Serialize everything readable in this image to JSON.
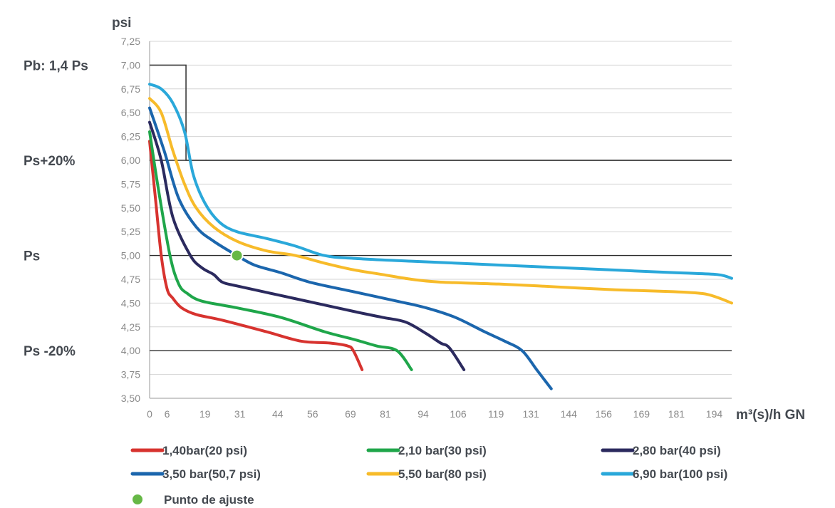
{
  "chart_data": {
    "type": "line",
    "ylabel": "psi",
    "xlabel": "m³(s)/h GN",
    "ylim": [
      3.5,
      7.25
    ],
    "xlim": [
      0,
      200
    ],
    "y_ticks": [
      "3,50",
      "3,75",
      "4,00",
      "4,25",
      "4,50",
      "4,75",
      "5,00",
      "5,25",
      "5,50",
      "5,75",
      "6,00",
      "6,25",
      "6,50",
      "6,75",
      "7,00",
      "7,25"
    ],
    "x_ticks": [
      "0",
      "6",
      "19",
      "31",
      "44",
      "56",
      "69",
      "81",
      "94",
      "106",
      "119",
      "131",
      "144",
      "156",
      "169",
      "181",
      "194"
    ],
    "x_tick_values": [
      0,
      6,
      19,
      31,
      44,
      56,
      69,
      81,
      94,
      106,
      119,
      131,
      144,
      156,
      169,
      181,
      194
    ],
    "grid": true,
    "legend_position": "bottom",
    "reference_lines": [
      {
        "label": "Ps+20%",
        "y": 6.0
      },
      {
        "label": "Ps",
        "y": 5.0
      },
      {
        "label": "Ps -20%",
        "y": 4.0
      }
    ],
    "limit_line": {
      "label": "Pb: 1,4 Ps",
      "color": "#3b3b3b",
      "points": [
        [
          0,
          7.0
        ],
        [
          12.5,
          7.0
        ],
        [
          12.5,
          6.0
        ],
        [
          200,
          6.0
        ]
      ]
    },
    "series": [
      {
        "name": "1,40bar(20 psi)",
        "color": "#d7332f",
        "points": [
          [
            0,
            6.2
          ],
          [
            2,
            5.6
          ],
          [
            4,
            5.0
          ],
          [
            6,
            4.65
          ],
          [
            8,
            4.55
          ],
          [
            11,
            4.45
          ],
          [
            16,
            4.38
          ],
          [
            25,
            4.32
          ],
          [
            40,
            4.2
          ],
          [
            52,
            4.1
          ],
          [
            62,
            4.08
          ],
          [
            68,
            4.05
          ],
          [
            70,
            4.0
          ],
          [
            73,
            3.8
          ]
        ]
      },
      {
        "name": "2,10 bar(30 psi)",
        "color": "#1fa64a",
        "points": [
          [
            0,
            6.3
          ],
          [
            3,
            5.7
          ],
          [
            7,
            5.0
          ],
          [
            10,
            4.7
          ],
          [
            13,
            4.6
          ],
          [
            18,
            4.52
          ],
          [
            30,
            4.45
          ],
          [
            45,
            4.35
          ],
          [
            60,
            4.2
          ],
          [
            70,
            4.12
          ],
          [
            78,
            4.05
          ],
          [
            85,
            4.0
          ],
          [
            90,
            3.8
          ]
        ]
      },
      {
        "name": "2,80 bar(40 psi)",
        "color": "#2b2a5e",
        "points": [
          [
            0,
            6.4
          ],
          [
            4,
            6.0
          ],
          [
            8,
            5.4
          ],
          [
            14,
            5.0
          ],
          [
            18,
            4.87
          ],
          [
            22,
            4.8
          ],
          [
            25,
            4.72
          ],
          [
            30,
            4.68
          ],
          [
            45,
            4.58
          ],
          [
            60,
            4.48
          ],
          [
            72,
            4.4
          ],
          [
            80,
            4.35
          ],
          [
            88,
            4.3
          ],
          [
            95,
            4.18
          ],
          [
            100,
            4.08
          ],
          [
            103,
            4.03
          ],
          [
            108,
            3.8
          ]
        ]
      },
      {
        "name": "3,50 bar(50,7 psi)",
        "color": "#1b66ad",
        "points": [
          [
            0,
            6.55
          ],
          [
            5,
            6.1
          ],
          [
            10,
            5.6
          ],
          [
            16,
            5.3
          ],
          [
            22,
            5.15
          ],
          [
            30,
            5.0
          ],
          [
            36,
            4.9
          ],
          [
            45,
            4.82
          ],
          [
            55,
            4.72
          ],
          [
            70,
            4.62
          ],
          [
            85,
            4.52
          ],
          [
            95,
            4.45
          ],
          [
            105,
            4.35
          ],
          [
            115,
            4.2
          ],
          [
            122,
            4.1
          ],
          [
            128,
            4.0
          ],
          [
            133,
            3.8
          ],
          [
            138,
            3.6
          ]
        ]
      },
      {
        "name": "5,50 bar(80 psi)",
        "color": "#f7bb2a",
        "points": [
          [
            0,
            6.65
          ],
          [
            4,
            6.5
          ],
          [
            8,
            6.1
          ],
          [
            12,
            5.75
          ],
          [
            16,
            5.5
          ],
          [
            22,
            5.3
          ],
          [
            30,
            5.15
          ],
          [
            40,
            5.05
          ],
          [
            50,
            5.0
          ],
          [
            60,
            4.92
          ],
          [
            70,
            4.85
          ],
          [
            80,
            4.8
          ],
          [
            90,
            4.75
          ],
          [
            100,
            4.72
          ],
          [
            120,
            4.7
          ],
          [
            140,
            4.67
          ],
          [
            160,
            4.64
          ],
          [
            180,
            4.62
          ],
          [
            190,
            4.6
          ],
          [
            195,
            4.56
          ],
          [
            200,
            4.5
          ]
        ]
      },
      {
        "name": "6,90 bar(100 psi)",
        "color": "#2aa8da",
        "points": [
          [
            0,
            6.8
          ],
          [
            4,
            6.75
          ],
          [
            8,
            6.6
          ],
          [
            12,
            6.3
          ],
          [
            15,
            5.85
          ],
          [
            19,
            5.55
          ],
          [
            24,
            5.35
          ],
          [
            30,
            5.25
          ],
          [
            40,
            5.18
          ],
          [
            50,
            5.1
          ],
          [
            60,
            5.0
          ],
          [
            70,
            4.97
          ],
          [
            90,
            4.94
          ],
          [
            120,
            4.9
          ],
          [
            150,
            4.86
          ],
          [
            180,
            4.82
          ],
          [
            195,
            4.8
          ],
          [
            200,
            4.76
          ]
        ]
      }
    ],
    "set_point": {
      "name": "Punto de ajuste",
      "color": "#66b846",
      "x": 30,
      "y": 5.0
    }
  }
}
